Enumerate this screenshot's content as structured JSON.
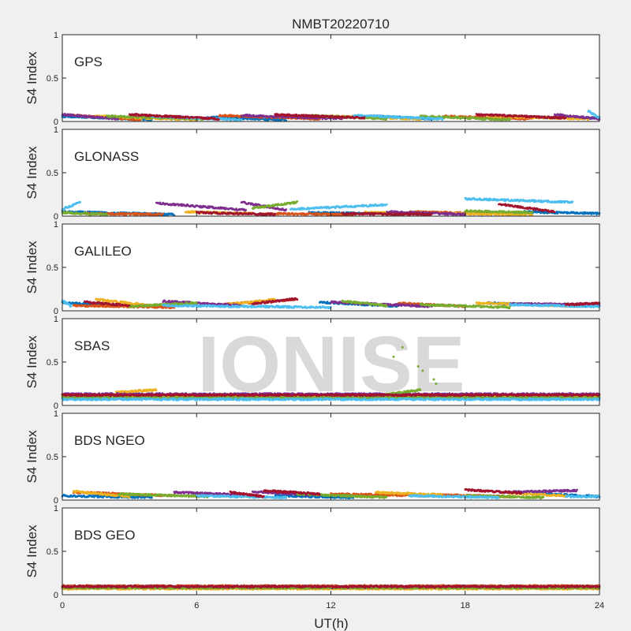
{
  "figure": {
    "title": "NMBT20220710",
    "xlabel": "UT(h)",
    "ylabel": "S4 Index",
    "xticks": [
      0,
      6,
      12,
      18,
      24
    ],
    "yticks": [
      "0",
      "0.5",
      "1"
    ],
    "watermark": "IONISE"
  },
  "palette": [
    "#0072bd",
    "#d95319",
    "#edb120",
    "#7e2f8e",
    "#77ac30",
    "#4dbeee",
    "#a2142f"
  ],
  "chart_data": [
    {
      "type": "scatter",
      "panel": "GPS",
      "xlim": [
        0,
        24
      ],
      "ylim": [
        0,
        1
      ],
      "series": [
        {
          "color": "#0072bd",
          "segments": [
            [
              0,
              0.06,
              4.0,
              0.02
            ],
            [
              6.5,
              0.05,
              10.0,
              0.02
            ],
            [
              14.0,
              0.06,
              16.5,
              0.03
            ],
            [
              20.5,
              0.05,
              24.0,
              0.04
            ]
          ]
        },
        {
          "color": "#d95319",
          "segments": [
            [
              0.5,
              0.07,
              3.5,
              0.02
            ],
            [
              7.0,
              0.07,
              11.5,
              0.03
            ],
            [
              17.0,
              0.06,
              21.0,
              0.03
            ]
          ]
        },
        {
          "color": "#edb120",
          "segments": [
            [
              1.5,
              0.06,
              6.0,
              0.02
            ],
            [
              12.0,
              0.06,
              16.0,
              0.03
            ],
            [
              19.0,
              0.06,
              23.5,
              0.03
            ]
          ]
        },
        {
          "color": "#7e2f8e",
          "segments": [
            [
              0.0,
              0.08,
              2.5,
              0.03
            ],
            [
              8.0,
              0.07,
              12.5,
              0.03
            ],
            [
              22.0,
              0.08,
              24.0,
              0.03
            ]
          ]
        },
        {
          "color": "#77ac30",
          "segments": [
            [
              2.0,
              0.06,
              6.5,
              0.03
            ],
            [
              11.0,
              0.07,
              14.5,
              0.03
            ],
            [
              16.0,
              0.06,
              20.0,
              0.02
            ]
          ]
        },
        {
          "color": "#4dbeee",
          "segments": [
            [
              4.0,
              0.06,
              8.0,
              0.02
            ],
            [
              13.0,
              0.07,
              17.0,
              0.03
            ],
            [
              23.5,
              0.12,
              24.0,
              0.04
            ]
          ]
        },
        {
          "color": "#a2142f",
          "segments": [
            [
              3.0,
              0.08,
              7.0,
              0.03
            ],
            [
              9.5,
              0.08,
              13.5,
              0.04
            ],
            [
              18.5,
              0.08,
              22.5,
              0.04
            ]
          ]
        }
      ]
    },
    {
      "type": "scatter",
      "panel": "GLONASS",
      "xlim": [
        0,
        24
      ],
      "ylim": [
        0,
        1
      ],
      "series": [
        {
          "color": "#0072bd",
          "segments": [
            [
              0.0,
              0.05,
              5.0,
              0.02
            ],
            [
              11.0,
              0.04,
              14.0,
              0.03
            ],
            [
              20.5,
              0.05,
              24.0,
              0.03
            ]
          ]
        },
        {
          "color": "#d95319",
          "segments": [
            [
              1.0,
              0.03,
              4.5,
              0.02
            ],
            [
              9.0,
              0.03,
              13.0,
              0.02
            ],
            [
              15.5,
              0.05,
              19.0,
              0.03
            ]
          ]
        },
        {
          "color": "#edb120",
          "segments": [
            [
              5.5,
              0.05,
              8.5,
              0.03
            ],
            [
              13.5,
              0.04,
              16.5,
              0.03
            ],
            [
              17.5,
              0.03,
              21.0,
              0.02
            ]
          ]
        },
        {
          "color": "#7e2f8e",
          "segments": [
            [
              4.2,
              0.15,
              8.2,
              0.07
            ],
            [
              8.0,
              0.16,
              10.0,
              0.07
            ],
            [
              14.5,
              0.05,
              18.0,
              0.02
            ]
          ]
        },
        {
          "color": "#77ac30",
          "segments": [
            [
              8.5,
              0.09,
              10.5,
              0.16
            ],
            [
              18.0,
              0.06,
              21.0,
              0.04
            ],
            [
              0.0,
              0.04,
              2.0,
              0.02
            ]
          ]
        },
        {
          "color": "#4dbeee",
          "segments": [
            [
              0.0,
              0.08,
              0.8,
              0.16
            ],
            [
              10.2,
              0.08,
              14.5,
              0.13
            ],
            [
              18.0,
              0.2,
              22.8,
              0.16
            ]
          ]
        },
        {
          "color": "#a2142f",
          "segments": [
            [
              6.0,
              0.04,
              9.5,
              0.02
            ],
            [
              12.5,
              0.03,
              16.5,
              0.02
            ],
            [
              19.5,
              0.14,
              22.0,
              0.05
            ]
          ]
        }
      ]
    },
    {
      "type": "scatter",
      "panel": "GALILEO",
      "xlim": [
        0,
        24
      ],
      "ylim": [
        0,
        1
      ],
      "series": [
        {
          "color": "#0072bd",
          "segments": [
            [
              0.0,
              0.09,
              4.0,
              0.05
            ],
            [
              11.5,
              0.1,
              15.0,
              0.05
            ],
            [
              19.0,
              0.09,
              23.5,
              0.05
            ]
          ]
        },
        {
          "color": "#d95319",
          "segments": [
            [
              0.5,
              0.06,
              5.0,
              0.04
            ],
            [
              7.0,
              0.07,
              10.5,
              0.13
            ],
            [
              15.0,
              0.09,
              18.0,
              0.05
            ]
          ]
        },
        {
          "color": "#edb120",
          "segments": [
            [
              1.5,
              0.13,
              4.0,
              0.06
            ],
            [
              7.5,
              0.08,
              9.5,
              0.13
            ],
            [
              18.5,
              0.09,
              22.5,
              0.06
            ]
          ]
        },
        {
          "color": "#7e2f8e",
          "segments": [
            [
              4.5,
              0.11,
              8.0,
              0.06
            ],
            [
              12.0,
              0.1,
              16.5,
              0.05
            ],
            [
              20.0,
              0.08,
              24.0,
              0.07
            ]
          ]
        },
        {
          "color": "#77ac30",
          "segments": [
            [
              3.0,
              0.05,
              6.0,
              0.09
            ],
            [
              12.5,
              0.11,
              14.5,
              0.06
            ],
            [
              16.0,
              0.07,
              20.0,
              0.04
            ]
          ]
        },
        {
          "color": "#4dbeee",
          "segments": [
            [
              0.0,
              0.12,
              0.4,
              0.05
            ],
            [
              4.5,
              0.06,
              12.0,
              0.04
            ],
            [
              20.0,
              0.07,
              24.0,
              0.05
            ]
          ]
        },
        {
          "color": "#a2142f",
          "segments": [
            [
              1.0,
              0.1,
              3.0,
              0.06
            ],
            [
              8.5,
              0.08,
              10.5,
              0.14
            ],
            [
              22.5,
              0.07,
              24.0,
              0.09
            ]
          ]
        }
      ]
    },
    {
      "type": "scatter",
      "panel": "SBAS",
      "xlim": [
        0,
        24
      ],
      "ylim": [
        0,
        1
      ],
      "series": [
        {
          "color": "#0072bd",
          "segments": [
            [
              0.0,
              0.08,
              24.0,
              0.08
            ]
          ]
        },
        {
          "color": "#d95319",
          "segments": [
            [
              0.0,
              0.11,
              24.0,
              0.11
            ]
          ]
        },
        {
          "color": "#edb120",
          "segments": [
            [
              0.0,
              0.1,
              24.0,
              0.1
            ],
            [
              2.4,
              0.15,
              4.2,
              0.18
            ]
          ]
        },
        {
          "color": "#7e2f8e",
          "segments": [
            [
              0.0,
              0.13,
              24.0,
              0.13
            ]
          ]
        },
        {
          "color": "#77ac30",
          "segments": [
            [
              0.0,
              0.09,
              24.0,
              0.09
            ],
            [
              14.5,
              0.13,
              16.0,
              0.18
            ]
          ]
        },
        {
          "color": "#4dbeee",
          "segments": [
            [
              0.0,
              0.07,
              24.0,
              0.07
            ]
          ]
        },
        {
          "color": "#a2142f",
          "segments": [
            [
              0.0,
              0.12,
              24.0,
              0.12
            ]
          ]
        }
      ],
      "outliers": [
        {
          "x": 14.8,
          "y": 0.56,
          "color": "#77ac30"
        },
        {
          "x": 15.2,
          "y": 0.67,
          "color": "#77ac30"
        },
        {
          "x": 15.9,
          "y": 0.45,
          "color": "#77ac30"
        },
        {
          "x": 16.1,
          "y": 0.4,
          "color": "#77ac30"
        },
        {
          "x": 16.6,
          "y": 0.3,
          "color": "#77ac30"
        },
        {
          "x": 16.7,
          "y": 0.25,
          "color": "#77ac30"
        }
      ]
    },
    {
      "type": "scatter",
      "panel": "BDS NGEO",
      "xlim": [
        0,
        24
      ],
      "ylim": [
        0,
        1
      ],
      "series": [
        {
          "color": "#0072bd",
          "segments": [
            [
              0.0,
              0.05,
              4.0,
              0.03
            ],
            [
              9.5,
              0.05,
              13.0,
              0.03
            ],
            [
              21.0,
              0.08,
              24.0,
              0.04
            ]
          ]
        },
        {
          "color": "#d95319",
          "segments": [
            [
              0.5,
              0.09,
              5.0,
              0.05
            ],
            [
              12.0,
              0.07,
              16.5,
              0.05
            ],
            [
              17.0,
              0.06,
              20.0,
              0.04
            ]
          ]
        },
        {
          "color": "#edb120",
          "segments": [
            [
              0.5,
              0.1,
              3.0,
              0.04
            ],
            [
              14.0,
              0.09,
              17.0,
              0.06
            ],
            [
              20.0,
              0.08,
              22.5,
              0.05
            ]
          ]
        },
        {
          "color": "#7e2f8e",
          "segments": [
            [
              5.0,
              0.09,
              8.0,
              0.06
            ],
            [
              8.5,
              0.1,
              11.0,
              0.06
            ],
            [
              19.5,
              0.09,
              23.0,
              0.11
            ]
          ]
        },
        {
          "color": "#77ac30",
          "segments": [
            [
              2.5,
              0.07,
              6.5,
              0.04
            ],
            [
              10.5,
              0.07,
              14.5,
              0.03
            ],
            [
              18.0,
              0.05,
              21.5,
              0.03
            ]
          ]
        },
        {
          "color": "#4dbeee",
          "segments": [
            [
              6.0,
              0.05,
              10.0,
              0.03
            ],
            [
              15.5,
              0.05,
              19.5,
              0.03
            ],
            [
              22.5,
              0.04,
              24.0,
              0.04
            ]
          ]
        },
        {
          "color": "#a2142f",
          "segments": [
            [
              7.5,
              0.09,
              9.0,
              0.04
            ],
            [
              9.0,
              0.11,
              11.5,
              0.07
            ],
            [
              18.0,
              0.12,
              20.5,
              0.08
            ]
          ]
        }
      ]
    },
    {
      "type": "scatter",
      "panel": "BDS GEO",
      "xlim": [
        0,
        24
      ],
      "ylim": [
        0,
        1
      ],
      "series": [
        {
          "color": "#0072bd",
          "segments": [
            [
              0.0,
              0.09,
              24.0,
              0.09
            ]
          ]
        },
        {
          "color": "#d95319",
          "segments": [
            [
              0.0,
              0.1,
              24.0,
              0.1
            ]
          ]
        },
        {
          "color": "#edb120",
          "segments": [
            [
              0.0,
              0.07,
              24.0,
              0.07
            ]
          ]
        },
        {
          "color": "#7e2f8e",
          "segments": [
            [
              0.0,
              0.085,
              24.0,
              0.085
            ]
          ]
        },
        {
          "color": "#77ac30",
          "segments": [
            [
              0.0,
              0.08,
              24.0,
              0.08
            ]
          ]
        },
        {
          "color": "#a2142f",
          "segments": [
            [
              0.0,
              0.095,
              24.0,
              0.095
            ]
          ]
        }
      ]
    }
  ]
}
